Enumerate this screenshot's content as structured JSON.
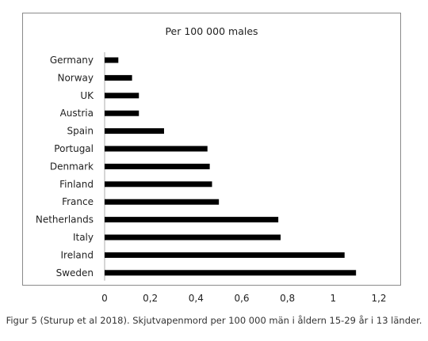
{
  "chart_data": {
    "type": "bar",
    "orientation": "horizontal",
    "title": "Per 100 000 males",
    "xlabel": "",
    "ylabel": "",
    "categories": [
      "Germany",
      "Norway",
      "UK",
      "Austria",
      "Spain",
      "Portugal",
      "Denmark",
      "Finland",
      "France",
      "Netherlands",
      "Italy",
      "Ireland",
      "Sweden"
    ],
    "values": [
      0.06,
      0.12,
      0.15,
      0.15,
      0.26,
      0.45,
      0.46,
      0.47,
      0.5,
      0.76,
      0.77,
      1.05,
      1.1
    ],
    "xlim": [
      0,
      1.2
    ],
    "xticks": [
      "0",
      "0,2",
      "0,4",
      "0,6",
      "0,8",
      "1",
      "1,2"
    ],
    "grid": false,
    "bar_color": "#000000"
  },
  "caption": "Figur 5 (Sturup et al 2018). Skjutvapenmord per 100 000 män i åldern 15-29 år i 13 länder."
}
